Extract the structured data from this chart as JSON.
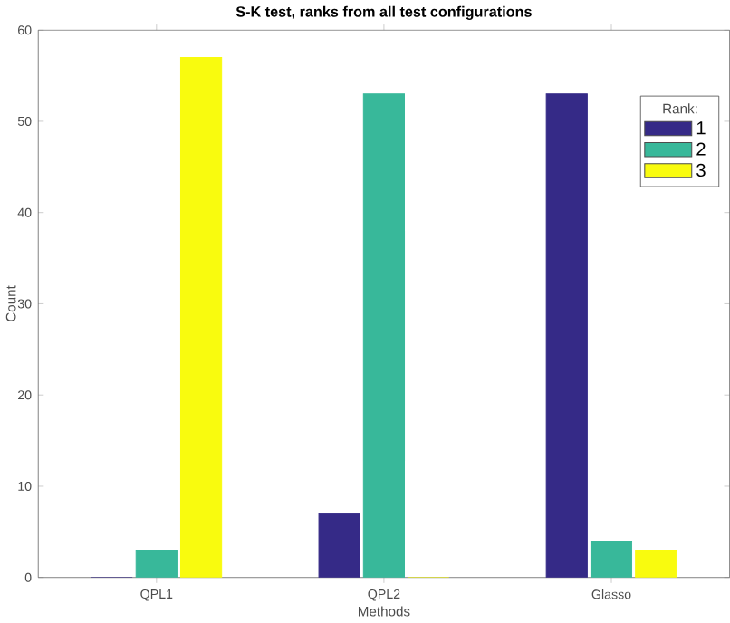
{
  "chart_data": {
    "type": "bar",
    "title": "S-K test, ranks from all test configurations",
    "xlabel": "Methods",
    "ylabel": "Count",
    "legend_title": "Rank:",
    "categories": [
      "QPL1",
      "QPL2",
      "Glasso"
    ],
    "series": [
      {
        "name": "1",
        "color": "#352a87",
        "values": [
          0,
          7,
          53
        ]
      },
      {
        "name": "2",
        "color": "#38b89a",
        "values": [
          3,
          53,
          4
        ]
      },
      {
        "name": "3",
        "color": "#f9fb0e",
        "values": [
          57,
          0,
          3
        ]
      }
    ],
    "ylim": [
      0,
      60
    ],
    "yticks": [
      0,
      10,
      20,
      30,
      40,
      50,
      60
    ],
    "grid": false,
    "legend": "top right"
  }
}
